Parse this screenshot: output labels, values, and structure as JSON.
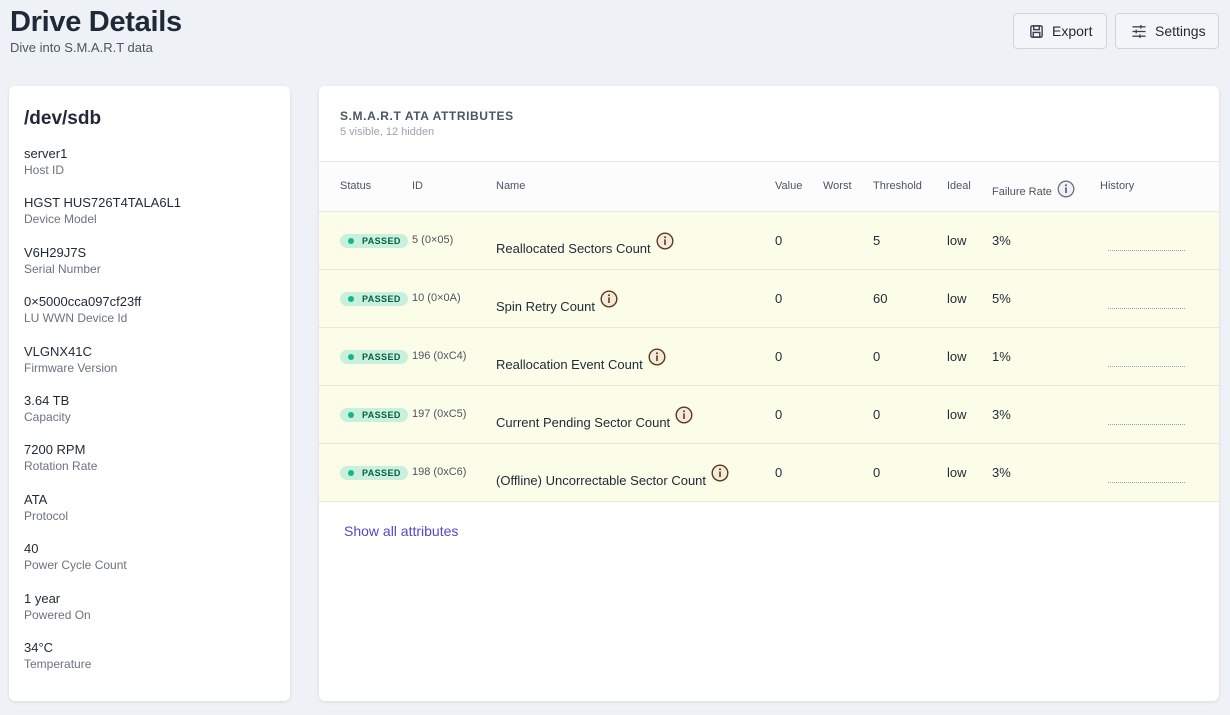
{
  "header": {
    "title": "Drive Details",
    "subtitle": "Dive into S.M.A.R.T data",
    "export_label": "Export",
    "settings_label": "Settings"
  },
  "drive": {
    "name": "/dev/sdb",
    "fields": [
      {
        "value": "server1",
        "label": "Host ID"
      },
      {
        "value": "HGST HUS726T4TALA6L1",
        "label": "Device Model"
      },
      {
        "value": "V6H29J7S",
        "label": "Serial Number"
      },
      {
        "value": "0×5000cca097cf23ff",
        "label": "LU WWN Device Id"
      },
      {
        "value": "VLGNX41C",
        "label": "Firmware Version"
      },
      {
        "value": "3.64 TB",
        "label": "Capacity"
      },
      {
        "value": "7200 RPM",
        "label": "Rotation Rate"
      },
      {
        "value": "ATA",
        "label": "Protocol"
      },
      {
        "value": "40",
        "label": "Power Cycle Count"
      },
      {
        "value": "1 year",
        "label": "Powered On"
      },
      {
        "value": "34°C",
        "label": "Temperature"
      }
    ]
  },
  "attributes": {
    "title": "S.M.A.R.T ATA ATTRIBUTES",
    "subtitle": "5 visible, 12 hidden",
    "columns": {
      "status": "Status",
      "id": "ID",
      "name": "Name",
      "value": "Value",
      "worst": "Worst",
      "threshold": "Threshold",
      "ideal": "Ideal",
      "failure_rate": "Failure Rate",
      "history": "History"
    },
    "rows": [
      {
        "status": "PASSED",
        "id": "5 (0×05)",
        "name": "Reallocated Sectors Count",
        "value": "0",
        "worst": "",
        "threshold": "5",
        "ideal": "low",
        "failure_rate": "3%"
      },
      {
        "status": "PASSED",
        "id": "10 (0×0A)",
        "name": "Spin Retry Count",
        "value": "0",
        "worst": "",
        "threshold": "60",
        "ideal": "low",
        "failure_rate": "5%"
      },
      {
        "status": "PASSED",
        "id": "196 (0xC4)",
        "name": "Reallocation Event Count",
        "value": "0",
        "worst": "",
        "threshold": "0",
        "ideal": "low",
        "failure_rate": "1%"
      },
      {
        "status": "PASSED",
        "id": "197 (0xC5)",
        "name": "Current Pending Sector Count",
        "value": "0",
        "worst": "",
        "threshold": "0",
        "ideal": "low",
        "failure_rate": "3%"
      },
      {
        "status": "PASSED",
        "id": "198 (0xC6)",
        "name": "(Offline) Uncorrectable Sector Count",
        "value": "0",
        "worst": "",
        "threshold": "0",
        "ideal": "low",
        "failure_rate": "3%"
      }
    ],
    "show_all_label": "Show all attributes"
  },
  "icons": {
    "export": "save-icon",
    "settings": "sliders-icon",
    "info": "info-circle-icon"
  },
  "colors": {
    "passed_badge_bg": "#c9f0dd",
    "passed_dot": "#10b981",
    "row_highlight": "#fcfde8",
    "link": "#5b45c6"
  }
}
